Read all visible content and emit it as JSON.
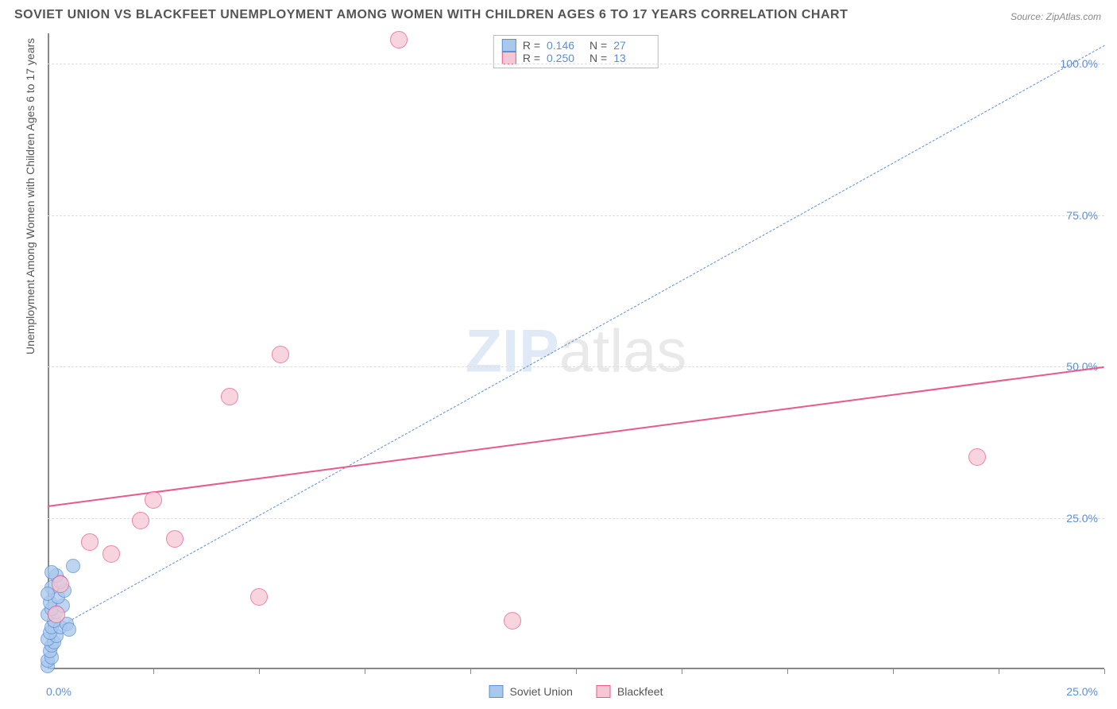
{
  "title": "SOVIET UNION VS BLACKFEET UNEMPLOYMENT AMONG WOMEN WITH CHILDREN AGES 6 TO 17 YEARS CORRELATION CHART",
  "source": "Source: ZipAtlas.com",
  "ylabel": "Unemployment Among Women with Children Ages 6 to 17 years",
  "watermark_zip": "ZIP",
  "watermark_atlas": "atlas",
  "chart": {
    "type": "scatter",
    "background_color": "#ffffff",
    "grid_color": "#dddddd",
    "axis_color": "#888888",
    "xlim": [
      0,
      25
    ],
    "ylim": [
      0,
      105
    ],
    "xticks": [
      0,
      2.5,
      5,
      7.5,
      10,
      12.5,
      15,
      17.5,
      20,
      22.5,
      25
    ],
    "xtick_labels_shown": {
      "0": "0.0%",
      "25": "25.0%"
    },
    "yticks": [
      25,
      50,
      75,
      100
    ],
    "ytick_labels": {
      "25": "25.0%",
      "50": "50.0%",
      "75": "75.0%",
      "100": "100.0%"
    },
    "label_color": "#5b8fd6",
    "label_fontsize": 14,
    "series": [
      {
        "name": "Soviet Union",
        "fill": "#a9c8ec",
        "stroke": "#5b8fd6",
        "marker_radius": 9,
        "r_value": "0.146",
        "n_value": "27",
        "trend": {
          "dash": "6,5",
          "width": 1.5,
          "color": "#5b8fd6",
          "y_at_x0": 6,
          "y_at_xmax": 103
        },
        "points": [
          [
            0.0,
            0.5
          ],
          [
            0.0,
            1.5
          ],
          [
            0.1,
            2.0
          ],
          [
            0.05,
            3.0
          ],
          [
            0.1,
            4.0
          ],
          [
            0.15,
            4.5
          ],
          [
            0.0,
            5.0
          ],
          [
            0.2,
            5.5
          ],
          [
            0.05,
            6.0
          ],
          [
            0.1,
            7.0
          ],
          [
            0.3,
            7.0
          ],
          [
            0.15,
            8.0
          ],
          [
            0.0,
            9.0
          ],
          [
            0.2,
            9.5
          ],
          [
            0.1,
            10.0
          ],
          [
            0.35,
            10.5
          ],
          [
            0.05,
            11.0
          ],
          [
            0.25,
            12.0
          ],
          [
            0.4,
            13.0
          ],
          [
            0.1,
            13.5
          ],
          [
            0.3,
            14.5
          ],
          [
            0.2,
            15.5
          ],
          [
            0.1,
            16.0
          ],
          [
            0.45,
            7.5
          ],
          [
            0.0,
            12.5
          ],
          [
            0.5,
            6.5
          ],
          [
            0.6,
            17.0
          ]
        ]
      },
      {
        "name": "Blackfeet",
        "fill": "#f5c6d3",
        "stroke": "#e85a8a",
        "marker_radius": 11,
        "r_value": "0.250",
        "n_value": "13",
        "trend": {
          "dash": "none",
          "width": 2.5,
          "color": "#e85a8a",
          "y_at_x0": 27,
          "y_at_xmax": 50
        },
        "points": [
          [
            0.2,
            9.0
          ],
          [
            0.3,
            14.0
          ],
          [
            1.0,
            21.0
          ],
          [
            1.5,
            19.0
          ],
          [
            2.2,
            24.5
          ],
          [
            2.5,
            28.0
          ],
          [
            3.0,
            21.5
          ],
          [
            4.3,
            45.0
          ],
          [
            5.0,
            12.0
          ],
          [
            5.5,
            52.0
          ],
          [
            8.3,
            104.0
          ],
          [
            11.0,
            8.0
          ],
          [
            22.0,
            35.0
          ]
        ]
      }
    ]
  },
  "legend": {
    "series1_label": "Soviet Union",
    "series2_label": "Blackfeet"
  }
}
